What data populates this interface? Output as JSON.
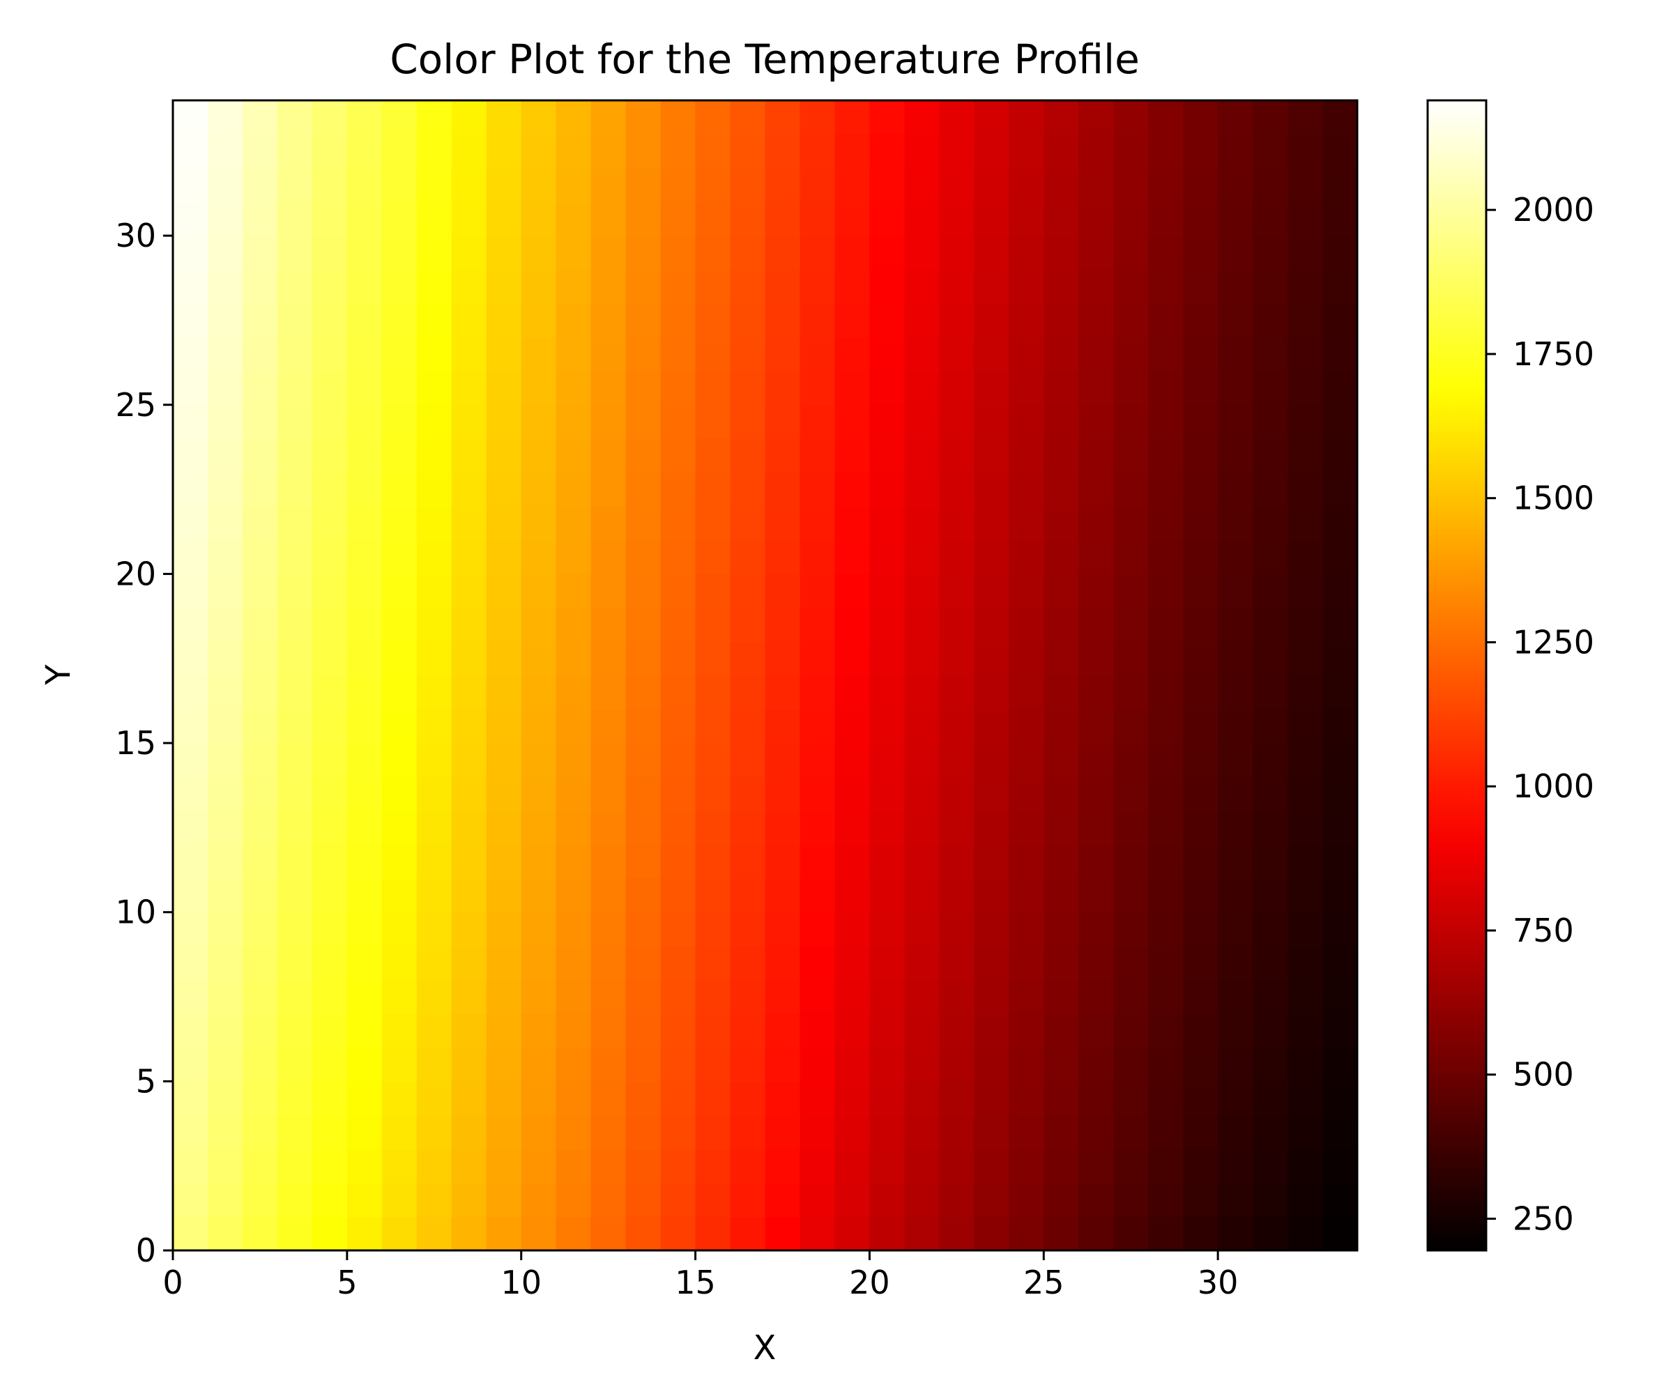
{
  "chart_data": {
    "type": "heatmap",
    "title": "Color Plot for the Temperature Profile",
    "xlabel": "X",
    "ylabel": "Y",
    "xlim": [
      0,
      34
    ],
    "ylim": [
      0,
      34
    ],
    "x_ticks": [
      0,
      5,
      10,
      15,
      20,
      25,
      30
    ],
    "y_ticks": [
      0,
      5,
      10,
      15,
      20,
      25,
      30
    ],
    "colormap": "hot",
    "colorbar": {
      "range": [
        195,
        2190
      ],
      "ticks": [
        250,
        500,
        750,
        1000,
        1250,
        1500,
        1750,
        2000
      ]
    },
    "grid": "34x34 cells; values vary mainly along X with a slight rise toward the top",
    "column_values_bottom_row": [
      1930,
      1870,
      1805,
      1745,
      1690,
      1640,
      1580,
      1520,
      1460,
      1400,
      1345,
      1290,
      1230,
      1170,
      1110,
      1050,
      990,
      930,
      860,
      800,
      740,
      690,
      640,
      590,
      545,
      500,
      455,
      410,
      370,
      330,
      295,
      265,
      235,
      205
    ],
    "column_values_top_row": [
      2180,
      2120,
      2045,
      1970,
      1905,
      1845,
      1790,
      1720,
      1650,
      1580,
      1525,
      1470,
      1410,
      1350,
      1290,
      1235,
      1180,
      1120,
      1060,
      1000,
      950,
      900,
      850,
      800,
      750,
      705,
      660,
      615,
      570,
      530,
      490,
      455,
      420,
      385
    ]
  }
}
